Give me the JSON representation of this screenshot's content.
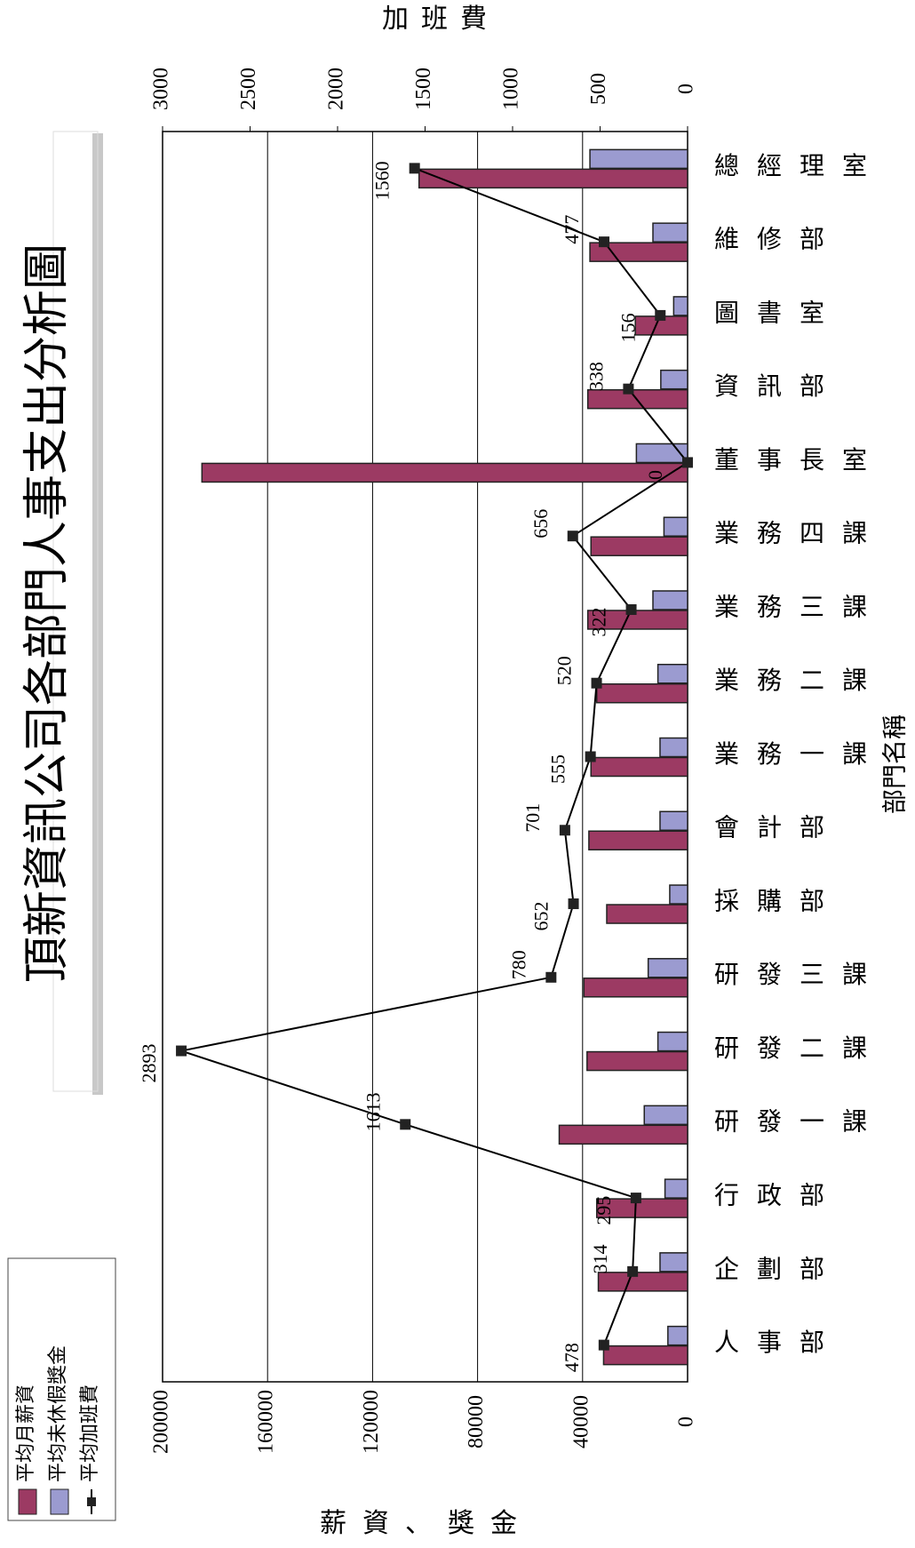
{
  "chart_data": {
    "type": "bar",
    "title": "頂新資訊公司各部門人事支出分析圖",
    "x_label": "部門名稱",
    "y_label": "薪資、獎金",
    "y2_label": "加班費",
    "categories": [
      "人事部",
      "企劃部",
      "行政部",
      "研發一課",
      "研發二課",
      "研發三課",
      "採購部",
      "會計部",
      "業務一課",
      "業務二課",
      "業務三課",
      "業務四課",
      "董事長室",
      "資訊部",
      "圖書室",
      "維修部",
      "總經理室"
    ],
    "series": [
      {
        "name": "平均月薪資",
        "color": "#9c3a63",
        "values": [
          32000,
          34000,
          34600,
          48900,
          38300,
          39500,
          30800,
          37600,
          36800,
          34600,
          38000,
          36800,
          185000,
          38000,
          19900,
          37200,
          102300
        ]
      },
      {
        "name": "平均未休假獎金",
        "color": "#9b9bd0",
        "values": [
          7500,
          10500,
          8600,
          16500,
          11300,
          15000,
          6800,
          10500,
          10500,
          11300,
          13200,
          9000,
          19500,
          10200,
          5300,
          13200,
          37200
        ]
      },
      {
        "name": "平均加班費",
        "type": "line",
        "axis": "y2",
        "color": "#000000",
        "values": [
          478,
          314,
          295,
          1613,
          2893,
          780,
          652,
          701,
          555,
          520,
          322,
          656,
          0,
          338,
          156,
          477,
          1560
        ]
      }
    ],
    "ylim": [
      0,
      200000
    ],
    "yticks": [
      0,
      40000,
      80000,
      120000,
      160000,
      200000
    ],
    "y2lim": [
      0,
      3000
    ],
    "y2ticks": [
      0,
      500,
      1000,
      1500,
      2000,
      2500,
      3000
    ],
    "grid": true,
    "legend": "top-left"
  }
}
